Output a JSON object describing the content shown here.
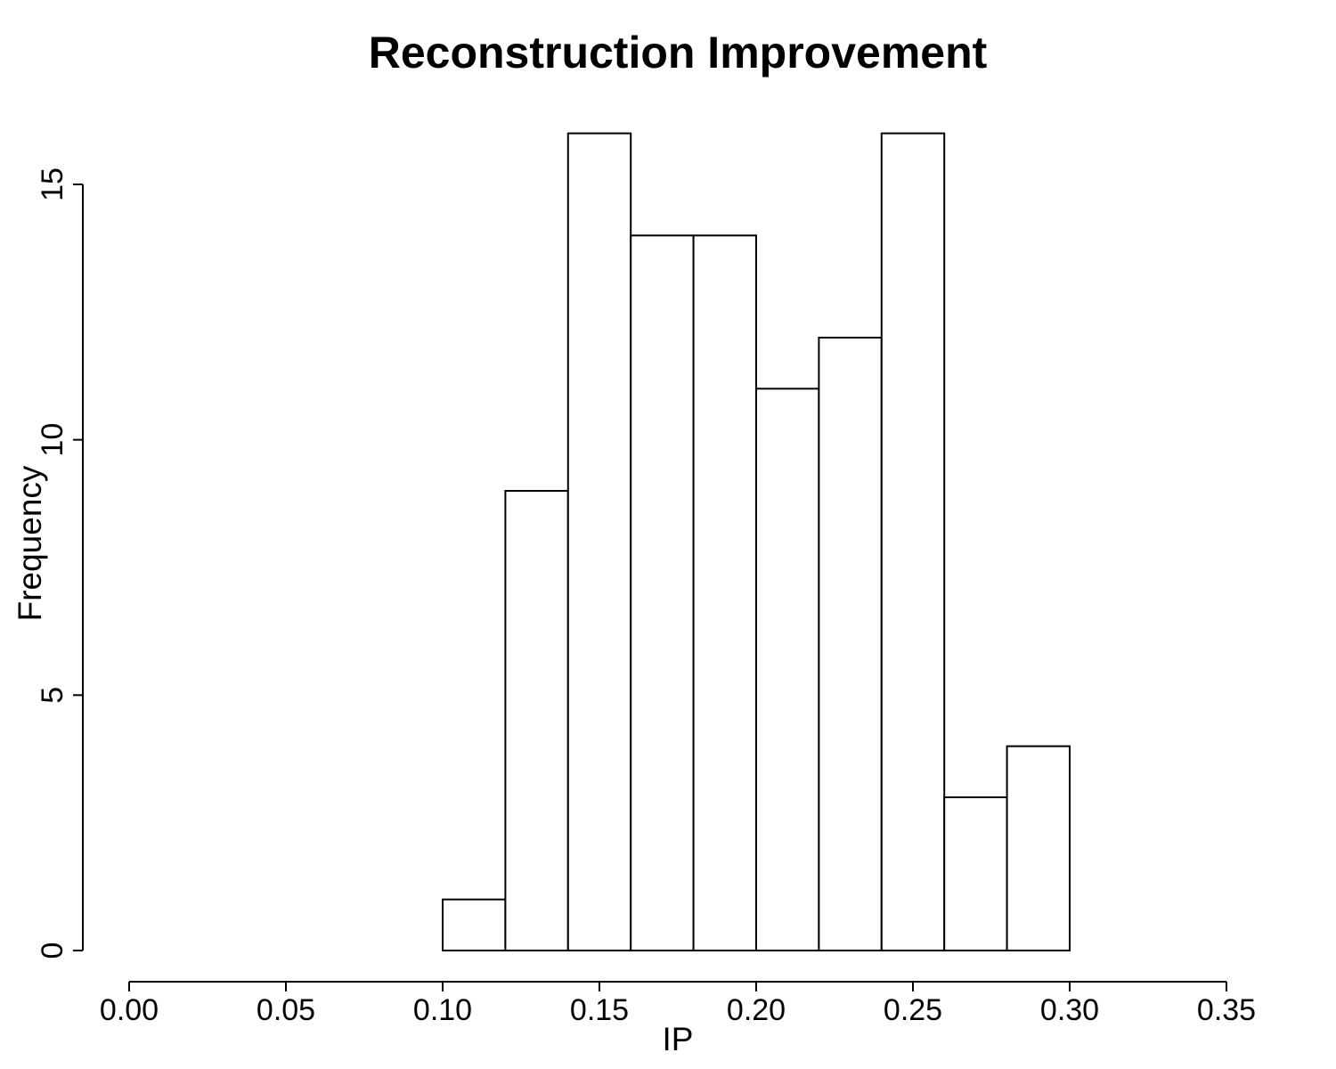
{
  "chart_data": {
    "type": "bar",
    "subtype": "histogram",
    "title": "Reconstruction Improvement",
    "xlabel": "IP",
    "ylabel": "Frequency",
    "bin_edges": [
      0.1,
      0.12,
      0.14,
      0.16,
      0.18,
      0.2,
      0.22,
      0.24,
      0.26,
      0.28,
      0.3
    ],
    "counts": [
      1,
      9,
      16,
      14,
      14,
      11,
      12,
      16,
      3,
      4
    ],
    "x_ticks": [
      0.0,
      0.05,
      0.1,
      0.15,
      0.2,
      0.25,
      0.3,
      0.35
    ],
    "x_tick_labels": [
      "0.00",
      "0.05",
      "0.10",
      "0.15",
      "0.20",
      "0.25",
      "0.30",
      "0.35"
    ],
    "y_ticks": [
      0,
      5,
      10,
      15
    ],
    "y_tick_labels": [
      "0",
      "5",
      "10",
      "15"
    ],
    "xlim": [
      0.0,
      0.35
    ],
    "ylim": [
      0,
      15
    ],
    "grid": "off",
    "legend": "none",
    "bar_fill": "#ffffff",
    "stroke_color": "#000000",
    "background_color": "#ffffff"
  }
}
